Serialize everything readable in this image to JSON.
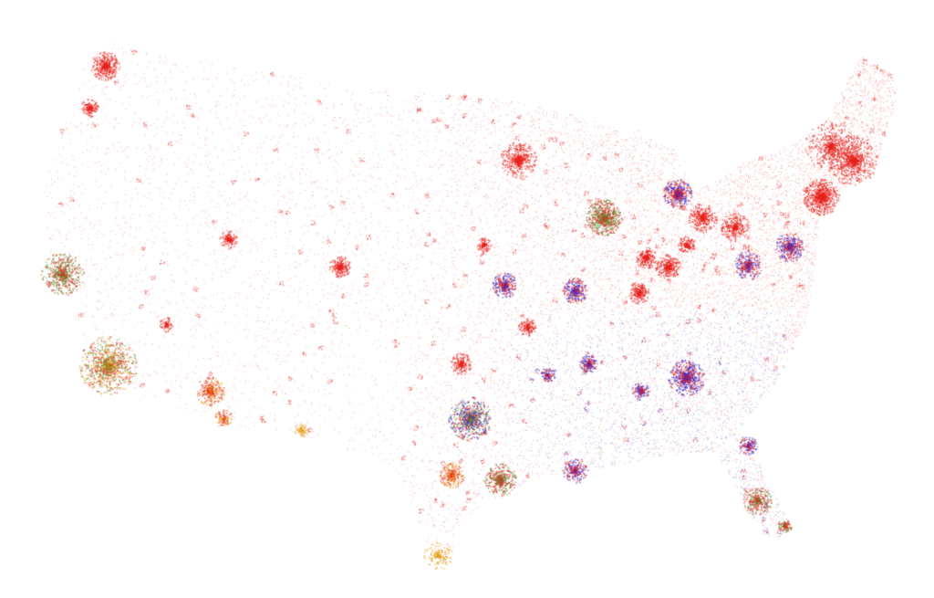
{
  "map": {
    "background": "#ffffff",
    "colors": {
      "red": "#e8231e",
      "blue": "#2a2ad8",
      "green": "#5a9a3a",
      "orange": "#e8a020",
      "yellow": "#f0d860"
    }
  }
}
